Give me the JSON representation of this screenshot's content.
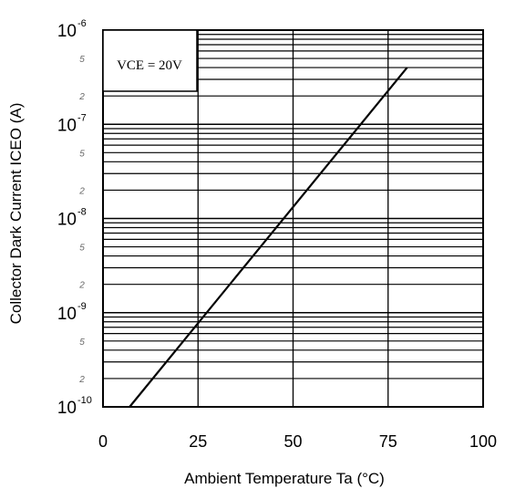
{
  "chart_data": {
    "type": "line",
    "xlabel": "Ambient Temperature Ta (°C)",
    "ylabel": "Collector Dark Current ICEO (A)",
    "condition_label": "VCE = 20V",
    "xlim": [
      0,
      100
    ],
    "ylim_log": [
      -10,
      -6
    ],
    "x_ticks": [
      0,
      25,
      50,
      75,
      100
    ],
    "y_ticks": [
      {
        "base": "10",
        "exp": "-6"
      },
      {
        "base": "10",
        "exp": "-7"
      },
      {
        "base": "10",
        "exp": "-8"
      },
      {
        "base": "10",
        "exp": "-9"
      },
      {
        "base": "10",
        "exp": "-10"
      }
    ],
    "minor_tick_labels": [
      "5",
      "2"
    ],
    "scale": "log",
    "grid": true,
    "series": [
      {
        "x": [
          7,
          80
        ],
        "y": [
          1e-10,
          4e-07
        ]
      }
    ]
  }
}
